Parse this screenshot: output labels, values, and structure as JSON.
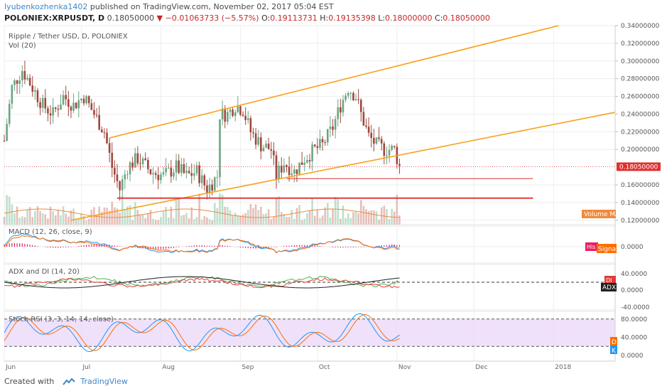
{
  "header": {
    "author": "lyubenkozhenka1402",
    "published_text": "published on TradingView.com, November 02, 2017 05:04 EST",
    "symbol": "POLONIEX:XRPUSDT, D",
    "last": "0.18050000",
    "change": "−0.01063733 (−5.57%)",
    "ohlc_labels": {
      "o": "O:",
      "h": "H:",
      "l": "L:",
      "c": "C:"
    },
    "open": "0.19113731",
    "high": "0.19135398",
    "low": "0.18000000",
    "close": "0.18050000"
  },
  "panes": {
    "main_title": "Ripple / Tether USD, D, POLONIEX",
    "vol_title": "Vol (20)",
    "volume_ma_label": "Volume MA",
    "volume_label": "Volume",
    "macd_title": "MACD (12, 26, close, 9)",
    "macd_hist_label": "Histogram",
    "macd_signal_label": "Signal",
    "adx_title": "ADX and DI (14, 20)",
    "adx_label": "ADX",
    "di_label": "DI-",
    "stoch_title": "Stoch RSI (3, 3, 14, 14, close)",
    "stoch_k_label": "K",
    "stoch_d_label": "D"
  },
  "footer": {
    "created_with": "Created with",
    "brand": "TradingView"
  },
  "colors": {
    "up": "#6ba583",
    "down": "#a0463c",
    "channel": "#f7a21b",
    "support": "#e03030",
    "price_tag": "#e03030",
    "macd": "#2196f3",
    "signal": "#ff6d00",
    "hist": "#e91e63",
    "di_plus": "#4caf50",
    "di_minus": "#e53935",
    "adx": "#212121",
    "stoch_bg": "#e9d4f9",
    "stoch_k": "#2196f3",
    "stoch_d": "#ff6d00",
    "volume_ma": "#f08a3c"
  },
  "chart_data": {
    "type": "candlestick",
    "title": "Ripple / Tether USD, D, POLONIEX",
    "x_ticks": [
      "Jun",
      "Jul",
      "Aug",
      "Sep",
      "Oct",
      "Nov",
      "Dec",
      "2018"
    ],
    "y_ticks": [
      "0.34000000",
      "0.32000000",
      "0.30000000",
      "0.28000000",
      "0.26000000",
      "0.24000000",
      "0.22000000",
      "0.20000000",
      "0.18050000",
      "0.16000000",
      "0.14000000",
      "0.12000000"
    ],
    "ylim": [
      0.115,
      0.34
    ],
    "xlim": [
      "2017-06-01",
      "2018-01-25"
    ],
    "last_price": 0.1805,
    "close_points": [
      [
        "2017-06-01",
        0.21
      ],
      [
        "2017-06-04",
        0.27
      ],
      [
        "2017-06-08",
        0.29
      ],
      [
        "2017-06-12",
        0.27
      ],
      [
        "2017-06-16",
        0.25
      ],
      [
        "2017-06-20",
        0.24
      ],
      [
        "2017-06-24",
        0.26
      ],
      [
        "2017-06-28",
        0.25
      ],
      [
        "2017-07-02",
        0.26
      ],
      [
        "2017-07-06",
        0.24
      ],
      [
        "2017-07-10",
        0.22
      ],
      [
        "2017-07-13",
        0.18
      ],
      [
        "2017-07-16",
        0.155
      ],
      [
        "2017-07-19",
        0.18
      ],
      [
        "2017-07-23",
        0.19
      ],
      [
        "2017-07-28",
        0.175
      ],
      [
        "2017-08-02",
        0.17
      ],
      [
        "2017-08-07",
        0.18
      ],
      [
        "2017-08-11",
        0.17
      ],
      [
        "2017-08-15",
        0.175
      ],
      [
        "2017-08-19",
        0.155
      ],
      [
        "2017-08-23",
        0.17
      ],
      [
        "2017-08-24",
        0.24
      ],
      [
        "2017-08-27",
        0.24
      ],
      [
        "2017-08-30",
        0.25
      ],
      [
        "2017-09-02",
        0.245
      ],
      [
        "2017-09-05",
        0.22
      ],
      [
        "2017-09-09",
        0.205
      ],
      [
        "2017-09-13",
        0.2
      ],
      [
        "2017-09-15",
        0.17
      ],
      [
        "2017-09-18",
        0.185
      ],
      [
        "2017-09-22",
        0.175
      ],
      [
        "2017-09-26",
        0.19
      ],
      [
        "2017-09-30",
        0.2
      ],
      [
        "2017-10-03",
        0.205
      ],
      [
        "2017-10-07",
        0.225
      ],
      [
        "2017-10-10",
        0.25
      ],
      [
        "2017-10-13",
        0.27
      ],
      [
        "2017-10-16",
        0.26
      ],
      [
        "2017-10-18",
        0.24
      ],
      [
        "2017-10-21",
        0.215
      ],
      [
        "2017-10-24",
        0.205
      ],
      [
        "2017-10-27",
        0.2
      ],
      [
        "2017-10-31",
        0.2
      ],
      [
        "2017-11-02",
        0.1805
      ]
    ],
    "channel_upper": [
      [
        "2017-07-12",
        0.213
      ],
      [
        "2018-01-03",
        0.34
      ]
    ],
    "channel_lower": [
      [
        "2017-06-27",
        0.12
      ],
      [
        "2018-01-25",
        0.242
      ]
    ],
    "support_1": {
      "from": "2017-09-19",
      "to": "2017-12-24",
      "value": 0.167
    },
    "support_2": {
      "from": "2017-07-15",
      "to": "2017-12-24",
      "value": 0.145
    },
    "macd": {
      "ticks": [
        "0.0000"
      ]
    },
    "adx_and_di": {
      "ticks": [
        "40.0000",
        "0.0000",
        "-40.0000"
      ]
    },
    "stoch_rsi": {
      "ticks": [
        "80.0000",
        "40.0000",
        "0.0000"
      ],
      "upper_band": 80,
      "lower_band": 20
    }
  }
}
